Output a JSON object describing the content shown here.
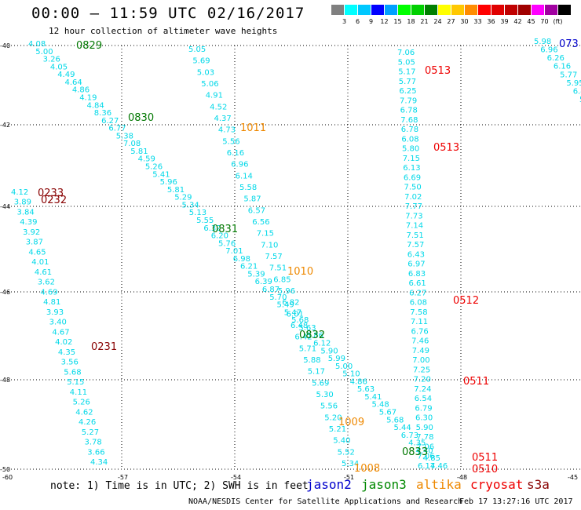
{
  "header": {
    "title": "00:00 – 11:59 UTC 02/16/2017",
    "subtitle": "12 hour collection of altimeter wave heights"
  },
  "legend": {
    "colors": [
      "#808080",
      "#00ffff",
      "#00c8ff",
      "#0000ff",
      "#00a0ff",
      "#00ff00",
      "#00d000",
      "#008000",
      "#ffff00",
      "#ffc800",
      "#ff8c00",
      "#ff0000",
      "#e00000",
      "#c00000",
      "#a00000",
      "#ff00ff",
      "#a000a0",
      "#000000"
    ],
    "labels": [
      "3",
      "6",
      "9",
      "12",
      "15",
      "18",
      "21",
      "24",
      "27",
      "30",
      "33",
      "36",
      "39",
      "42",
      "45",
      "70",
      "(ft)"
    ]
  },
  "axes": {
    "lat_labels": [
      "-40",
      "-42",
      "-44",
      "-46",
      "-48",
      "-50"
    ],
    "lon_labels": [
      "-60",
      "-57",
      "-54",
      "-51",
      "-48",
      "-45"
    ]
  },
  "times": [
    {
      "text": "0829",
      "color": "#007700"
    },
    {
      "text": "0830",
      "color": "#007700"
    },
    {
      "text": "0831",
      "color": "#007700"
    },
    {
      "text": "0832",
      "color": "#007700"
    },
    {
      "text": "0833",
      "color": "#007700"
    },
    {
      "text": "1011",
      "color": "#ee8800"
    },
    {
      "text": "1010",
      "color": "#ee8800"
    },
    {
      "text": "1009",
      "color": "#ee8800"
    },
    {
      "text": "1008",
      "color": "#ee8800"
    },
    {
      "text": "0513",
      "color": "#ee0000"
    },
    {
      "text": "0513",
      "color": "#ee0000"
    },
    {
      "text": "0512",
      "color": "#ee0000"
    },
    {
      "text": "0511",
      "color": "#ee0000"
    },
    {
      "text": "0511",
      "color": "#ee0000"
    },
    {
      "text": "0510",
      "color": "#ee0000"
    },
    {
      "text": "0233",
      "color": "#880000"
    },
    {
      "text": "0232",
      "color": "#880000"
    },
    {
      "text": "0231",
      "color": "#880000"
    },
    {
      "text": "073",
      "color": "#0000cc"
    }
  ],
  "tracks": {
    "track_a": [
      "4.08",
      "5.00",
      "3.26",
      "4.05",
      "4.49",
      "4.64",
      "4.86",
      "4.19",
      "4.84",
      "8.36",
      "6.27",
      "6.77",
      "5.38",
      "7.08",
      "5.81",
      "4.59",
      "5.26",
      "5.41",
      "5.96",
      "5.81",
      "5.29",
      "5.34",
      "5.13",
      "5.55",
      "6.32",
      "6.20",
      "5.76",
      "7.01",
      "6.98",
      "6.21",
      "5.39",
      "6.39",
      "6.87",
      "5.70",
      "5.49",
      "5.47",
      "5.68",
      "5.63",
      "5.86",
      "6.12",
      "5.90",
      "5.99",
      "5.00",
      "5.10",
      "4.86",
      "5.63",
      "5.41",
      "5.48",
      "5.67",
      "5.68",
      "5.44",
      "6.73",
      "4.35",
      "4.40",
      "4.85",
      "4.46"
    ],
    "track_b": [
      "5.05",
      "5.69",
      "5.03",
      "5.06",
      "4.91",
      "4.52",
      "4.37",
      "4.73",
      "5.56",
      "6.16",
      "6.96",
      "6.14",
      "5.58",
      "5.87",
      "6.57",
      "6.56",
      "7.15",
      "7.10",
      "7.57",
      "7.51",
      "6.85",
      "5.96",
      "6.82",
      "6.01",
      "6.48",
      "6.42",
      "5.71",
      "5.88",
      "5.17",
      "5.69",
      "5.30",
      "5.56",
      "5.20",
      "5.21",
      "5.40",
      "5.52",
      "5.34"
    ],
    "track_c": [
      "7.06",
      "5.05",
      "5.17",
      "5.77",
      "6.25",
      "7.79",
      "6.78",
      "7.68",
      "6.78",
      "6.08",
      "5.80",
      "7.15",
      "6.13",
      "6.69",
      "7.50",
      "7.02",
      "7.77",
      "7.73",
      "7.14",
      "7.51",
      "7.57",
      "6.43",
      "6.97",
      "6.83",
      "6.61",
      "6.27",
      "6.08",
      "7.58",
      "7.11",
      "6.76",
      "7.46",
      "7.49",
      "7.00",
      "7.25",
      "7.20",
      "7.24",
      "6.54",
      "6.79",
      "6.30",
      "5.90",
      "7.78",
      "7.06",
      "7.06",
      "6.17"
    ],
    "track_d": [
      "4.12",
      "3.89",
      "3.84",
      "4.39",
      "3.92",
      "3.87",
      "4.65",
      "4.01",
      "4.61",
      "3.62",
      "4.69",
      "4.81",
      "3.93",
      "3.40",
      "4.67",
      "4.02",
      "4.35",
      "3.56",
      "5.68",
      "5.15",
      "4.11",
      "5.26",
      "4.62",
      "4.26",
      "5.27",
      "3.78",
      "3.66",
      "4.34"
    ],
    "track_e": [
      "5.98",
      "6.96",
      "6.26",
      "6.16",
      "5.77",
      "5.95",
      "6.47",
      "5"
    ]
  },
  "footer": {
    "note": "note: 1) Time is in UTC; 2) SWH is in feet",
    "satellites": [
      {
        "name": "jason2",
        "color": "#0000cc"
      },
      {
        "name": "jason3",
        "color": "#008800"
      },
      {
        "name": "altika",
        "color": "#ee8800"
      },
      {
        "name": "cryosat",
        "color": "#ee0000"
      },
      {
        "name": "s3a",
        "color": "#880000"
      }
    ],
    "credit": "NOAA/NESDIS Center for Satellite Applications and Research",
    "timestamp": "Feb 17 13:27:16 UTC 2017"
  }
}
